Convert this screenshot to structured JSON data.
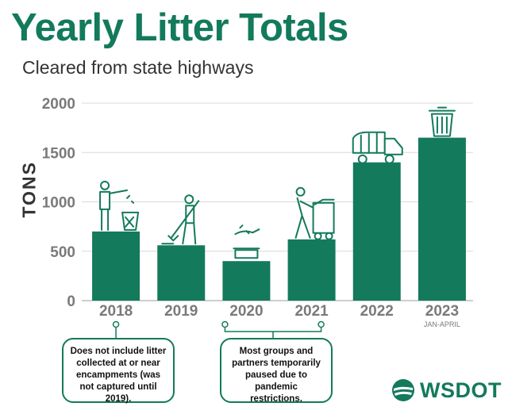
{
  "header": {
    "title": "Yearly Litter Totals",
    "subtitle": "Cleared from state highways"
  },
  "colors": {
    "brand": "#137a5c",
    "grid": "#d9d9d9",
    "axis_text": "#7a7a7a"
  },
  "chart_data": {
    "type": "bar",
    "title": "Yearly Litter Totals",
    "subtitle": "Cleared from state highways",
    "xlabel": "",
    "ylabel": "TONS",
    "categories": [
      "2018",
      "2019",
      "2020",
      "2021",
      "2022",
      "2023"
    ],
    "category_sublabels": [
      "",
      "",
      "",
      "",
      "",
      "JAN-APRIL"
    ],
    "values": [
      700,
      560,
      400,
      620,
      1400,
      1650
    ],
    "ylim": [
      0,
      2000
    ],
    "yticks": [
      0,
      500,
      1000,
      1500,
      2000
    ],
    "grid": true,
    "bar_icons": [
      "person-throwing-litter-icon",
      "person-sweeping-icon",
      "hand-dropping-litter-icon",
      "person-pushing-dumpster-icon",
      "garbage-truck-icon",
      "trash-can-icon"
    ]
  },
  "notes": [
    {
      "text": "Does not include litter collected at or near encampments (was not captured until 2019)."
    },
    {
      "text": "Most groups and partners temporarily paused due to pandemic restrictions."
    }
  ],
  "logo": {
    "text": "WSDOT",
    "icon": "wsdot-logo-icon"
  }
}
